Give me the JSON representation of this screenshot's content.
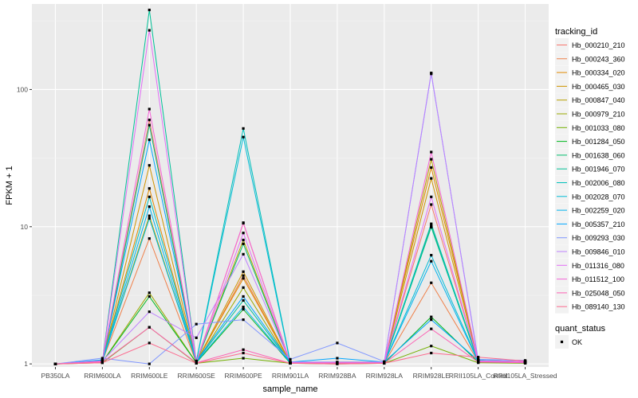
{
  "chart_data": {
    "type": "line",
    "xlabel": "sample_name",
    "ylabel": "FPKM + 1",
    "y_scale": "log10",
    "ylim": [
      0.95,
      420
    ],
    "y_ticks": [
      {
        "value": 1,
        "label": "1"
      },
      {
        "value": 10,
        "label": "10"
      },
      {
        "value": 100,
        "label": "100"
      }
    ],
    "categories": [
      "PB350LA",
      "RRIM600LA",
      "RRIM600LE",
      "RRIM600SE",
      "RRIM600PE",
      "RRIM901LA",
      "RRIM928BA",
      "RRIM928LA",
      "RRIM928LE",
      "RRII105LA_Control",
      "RRII105LA_Stressed"
    ],
    "grid": true,
    "legend_position": "right",
    "legend_title": "tracking_id",
    "series": [
      {
        "name": "Hb_000210_210",
        "color": "#F8766D",
        "values": [
          1.0,
          1.04,
          60,
          1.03,
          10.6,
          1.02,
          1.02,
          1.02,
          14.5,
          1.05,
          1.03
        ]
      },
      {
        "name": "Hb_000243_360",
        "color": "#EF7F48",
        "values": [
          1.0,
          1.05,
          8.2,
          1.02,
          4.4,
          1.01,
          1.01,
          1.01,
          3.9,
          1.04,
          1.02
        ]
      },
      {
        "name": "Hb_000334_020",
        "color": "#E18A00",
        "values": [
          1.0,
          1.06,
          19.0,
          1.04,
          4.2,
          1.02,
          1.03,
          1.03,
          27.0,
          1.06,
          1.04
        ]
      },
      {
        "name": "Hb_000465_030",
        "color": "#CF9400",
        "values": [
          1.0,
          1.05,
          28.0,
          1.03,
          4.7,
          1.02,
          1.02,
          1.02,
          22.5,
          1.05,
          1.03
        ]
      },
      {
        "name": "Hb_000847_040",
        "color": "#B79F00",
        "values": [
          1.0,
          1.04,
          12.0,
          1.02,
          8.0,
          1.01,
          1.01,
          1.01,
          31.0,
          1.04,
          1.02
        ]
      },
      {
        "name": "Hb_000979_210",
        "color": "#9AA800",
        "values": [
          1.0,
          1.03,
          3.3,
          1.02,
          3.6,
          1.01,
          1.01,
          1.01,
          10.2,
          1.03,
          1.02
        ]
      },
      {
        "name": "Hb_001033_080",
        "color": "#72B000",
        "values": [
          1.0,
          1.02,
          1.85,
          1.01,
          1.1,
          1.01,
          1.0,
          1.01,
          1.35,
          1.02,
          1.01
        ]
      },
      {
        "name": "Hb_001284_050",
        "color": "#00B81F",
        "values": [
          1.0,
          1.03,
          3.1,
          1.02,
          2.5,
          1.01,
          1.01,
          1.01,
          2.2,
          1.03,
          1.02
        ]
      },
      {
        "name": "Hb_001638_060",
        "color": "#00BE6C",
        "values": [
          1.0,
          1.04,
          55,
          1.03,
          7.5,
          1.02,
          1.02,
          1.02,
          10.0,
          1.05,
          1.03
        ]
      },
      {
        "name": "Hb_001946_070",
        "color": "#00C097",
        "values": [
          1.0,
          1.05,
          380,
          1.04,
          2.9,
          1.02,
          1.02,
          1.02,
          9.9,
          1.05,
          1.03
        ]
      },
      {
        "name": "Hb_002006_080",
        "color": "#00C0BB",
        "values": [
          1.0,
          1.06,
          16.5,
          1.05,
          52,
          1.03,
          1.03,
          1.03,
          10.5,
          1.06,
          1.04
        ]
      },
      {
        "name": "Hb_002028_070",
        "color": "#00BCD6",
        "values": [
          1.0,
          1.05,
          11.5,
          1.04,
          45,
          1.02,
          1.02,
          1.02,
          6.2,
          1.05,
          1.03
        ]
      },
      {
        "name": "Hb_002259_020",
        "color": "#00B3EE",
        "values": [
          1.0,
          1.04,
          14.0,
          1.03,
          2.6,
          1.02,
          1.02,
          1.02,
          5.6,
          1.04,
          1.03
        ]
      },
      {
        "name": "Hb_005357_210",
        "color": "#00A6FF",
        "values": [
          1.0,
          1.07,
          43,
          1.05,
          3.1,
          1.03,
          1.1,
          1.03,
          2.1,
          1.06,
          1.04
        ]
      },
      {
        "name": "Hb_009293_030",
        "color": "#7F96FF",
        "values": [
          1.0,
          1.1,
          1.0,
          1.95,
          2.1,
          1.08,
          1.42,
          1.04,
          130,
          1.08,
          1.06
        ]
      },
      {
        "name": "Hb_009846_010",
        "color": "#BD81FF",
        "values": [
          1.0,
          1.05,
          2.4,
          1.55,
          6.3,
          1.03,
          1.03,
          1.03,
          132,
          1.05,
          1.04
        ]
      },
      {
        "name": "Hb_011316_080",
        "color": "#E36EF6",
        "values": [
          1.0,
          1.04,
          270,
          1.03,
          9.0,
          1.02,
          1.02,
          1.02,
          16.5,
          1.04,
          1.03
        ]
      },
      {
        "name": "Hb_011512_100",
        "color": "#F566D8",
        "values": [
          1.0,
          1.05,
          72,
          1.03,
          10.7,
          1.02,
          1.02,
          1.02,
          35,
          1.05,
          1.04
        ]
      },
      {
        "name": "Hb_025048_050",
        "color": "#FD61B4",
        "values": [
          1.0,
          1.03,
          1.85,
          1.02,
          1.27,
          1.01,
          1.01,
          1.01,
          1.8,
          1.03,
          1.02
        ]
      },
      {
        "name": "Hb_089140_130",
        "color": "#FC6A8E",
        "values": [
          1.0,
          1.02,
          1.42,
          1.01,
          1.2,
          1.01,
          1.0,
          1.01,
          1.2,
          1.12,
          1.05
        ]
      }
    ],
    "point_legend": {
      "title": "quant_status",
      "items": [
        {
          "label": "OK"
        }
      ]
    }
  }
}
